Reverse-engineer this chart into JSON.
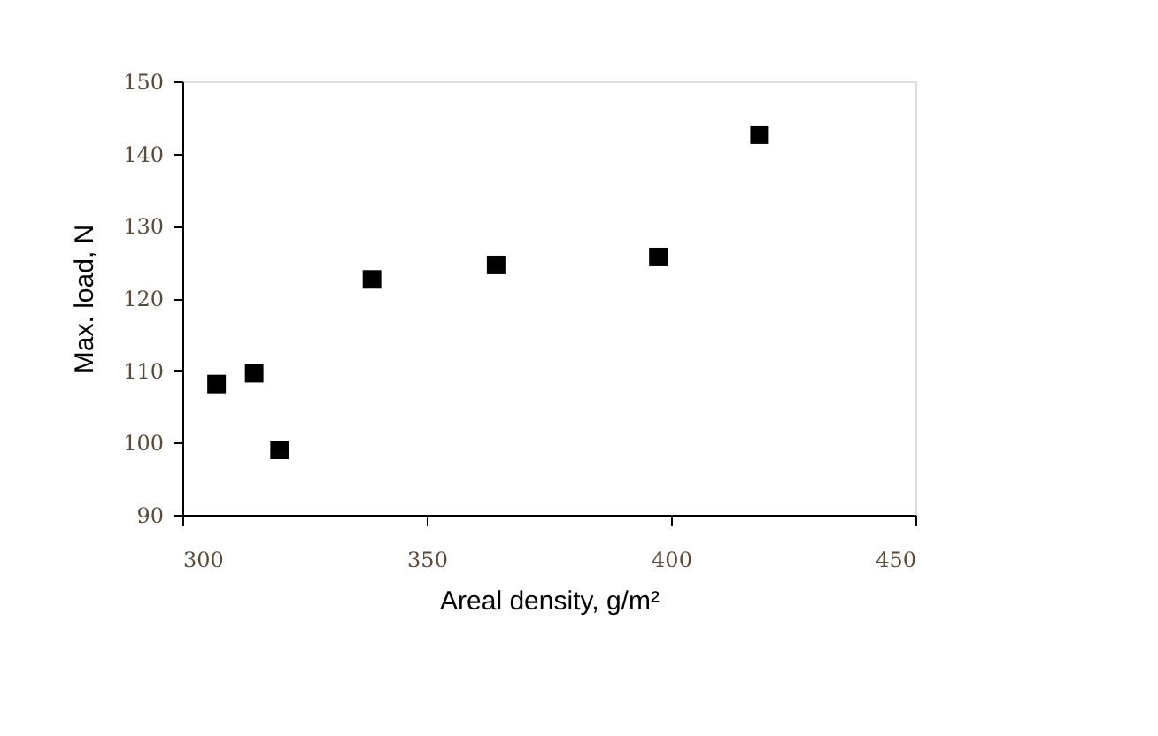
{
  "chart_data": {
    "type": "scatter",
    "xlabel": "Areal density, g/m²",
    "ylabel": "Max. load, N",
    "x": [
      307,
      314.7,
      319.9,
      338.8,
      364.2,
      397.4,
      418.1
    ],
    "series": [
      {
        "color": "#000000",
        "values": [
          108.1,
          109.6,
          99,
          122.6,
          124.6,
          125.7,
          142.6
        ]
      }
    ],
    "xlim": [
      300,
      450
    ],
    "xticks": [
      300,
      350,
      400,
      450
    ],
    "ylim": [
      90,
      150
    ],
    "yticks": [
      90,
      100,
      110,
      120,
      130,
      140,
      150
    ],
    "marker": "square",
    "grid": false,
    "legend": false
  }
}
